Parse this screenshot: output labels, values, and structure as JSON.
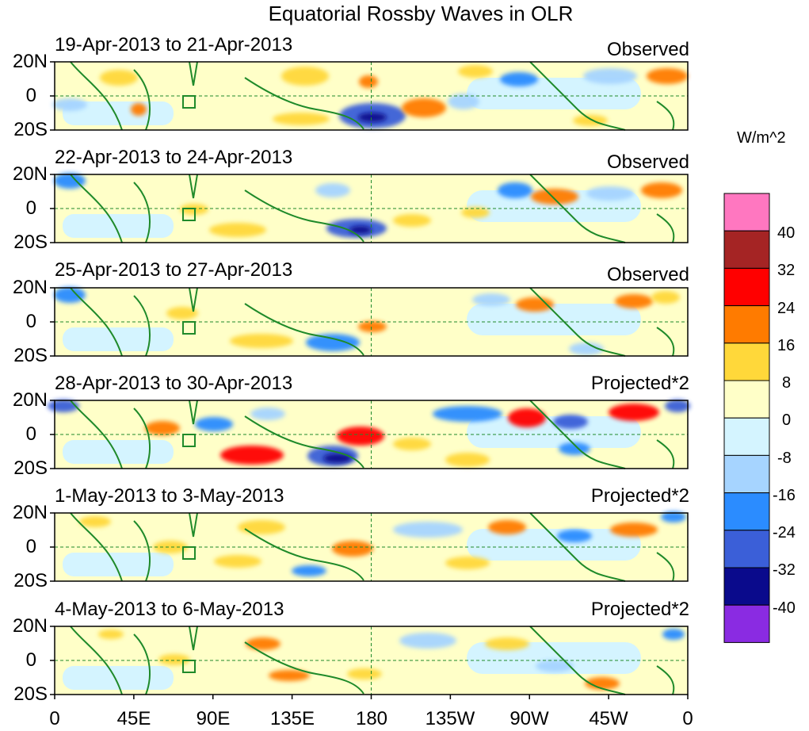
{
  "title": "Equatorial Rossby Waves in OLR",
  "panels": [
    {
      "label": "19-Apr-2013 to 21-Apr-2013",
      "status": "Observed"
    },
    {
      "label": "22-Apr-2013 to 24-Apr-2013",
      "status": "Observed"
    },
    {
      "label": "25-Apr-2013 to 27-Apr-2013",
      "status": "Observed"
    },
    {
      "label": "28-Apr-2013 to 30-Apr-2013",
      "status": "Projected*2"
    },
    {
      "label": "1-May-2013 to 3-May-2013",
      "status": "Projected*2"
    },
    {
      "label": "4-May-2013 to 6-May-2013",
      "status": "Projected*2"
    }
  ],
  "lat_ticks": [
    "20N",
    "0",
    "20S"
  ],
  "lon_ticks": [
    "0",
    "45E",
    "90E",
    "135E",
    "180",
    "135W",
    "90W",
    "45W",
    "0"
  ],
  "colorbar": {
    "unit": "W/m^2",
    "ticks": [
      "40",
      "32",
      "24",
      "16",
      "8",
      "0",
      "-8",
      "-16",
      "-24",
      "-32",
      "-40"
    ],
    "colors": [
      "#ff77c0",
      "#a52424",
      "#ff0000",
      "#ff7b00",
      "#ffd83a",
      "#ffffc8",
      "#d4f4ff",
      "#a6d4ff",
      "#2b8cff",
      "#3b5fd8",
      "#0a0a8c",
      "#8a2be2"
    ]
  },
  "anomalies": [
    [
      [
        88,
        132,
        22,
        8,
        "#a6d4ff"
      ],
      [
        150,
        98,
        24,
        10,
        "#ffd83a"
      ],
      [
        175,
        138,
        10,
        8,
        "#ff7b00"
      ],
      [
        385,
        96,
        30,
        12,
        "#ffd83a"
      ],
      [
        465,
        103,
        12,
        8,
        "#ff7b00"
      ],
      [
        470,
        146,
        42,
        16,
        "#3b5fd8"
      ],
      [
        470,
        148,
        18,
        6,
        "#0a0a8c"
      ],
      [
        535,
        136,
        28,
        12,
        "#ff7b00"
      ],
      [
        600,
        90,
        22,
        8,
        "#ffd83a"
      ],
      [
        655,
        100,
        24,
        9,
        "#2b8cff"
      ],
      [
        585,
        128,
        20,
        10,
        "#a6d4ff"
      ],
      [
        770,
        96,
        34,
        10,
        "#a6d4ff"
      ],
      [
        842,
        96,
        26,
        10,
        "#ff7b00"
      ],
      [
        745,
        152,
        22,
        7,
        "#ffd83a"
      ],
      [
        380,
        150,
        36,
        8,
        "#ffd83a"
      ]
    ],
    [
      [
        88,
        228,
        20,
        10,
        "#2b8cff"
      ],
      [
        245,
        264,
        18,
        7,
        "#ffd83a"
      ],
      [
        300,
        290,
        36,
        9,
        "#ffd83a"
      ],
      [
        420,
        240,
        22,
        9,
        "#a6d4ff"
      ],
      [
        450,
        288,
        38,
        12,
        "#3b5fd8"
      ],
      [
        455,
        290,
        14,
        5,
        "#0a0a8c"
      ],
      [
        520,
        278,
        24,
        8,
        "#ffd83a"
      ],
      [
        650,
        240,
        22,
        10,
        "#2b8cff"
      ],
      [
        700,
        248,
        30,
        10,
        "#ff7b00"
      ],
      [
        770,
        244,
        30,
        9,
        "#a6d4ff"
      ],
      [
        835,
        240,
        26,
        10,
        "#ff7b00"
      ],
      [
        600,
        268,
        18,
        7,
        "#ffd83a"
      ]
    ],
    [
      [
        88,
        372,
        20,
        10,
        "#2b8cff"
      ],
      [
        230,
        395,
        20,
        8,
        "#ffd83a"
      ],
      [
        330,
        430,
        40,
        9,
        "#ffd83a"
      ],
      [
        420,
        432,
        34,
        11,
        "#2b8cff"
      ],
      [
        470,
        412,
        18,
        7,
        "#ff7b00"
      ],
      [
        620,
        378,
        24,
        8,
        "#a6d4ff"
      ],
      [
        675,
        384,
        24,
        9,
        "#ff7b00"
      ],
      [
        800,
        380,
        24,
        9,
        "#ff7b00"
      ],
      [
        740,
        440,
        22,
        8,
        "#a6d4ff"
      ],
      [
        840,
        375,
        18,
        8,
        "#ffd83a"
      ]
    ],
    [
      [
        80,
        512,
        20,
        8,
        "#3b5fd8"
      ],
      [
        205,
        540,
        22,
        9,
        "#ff7b00"
      ],
      [
        270,
        535,
        24,
        9,
        "#2b8cff"
      ],
      [
        318,
        574,
        40,
        12,
        "#ff0000"
      ],
      [
        338,
        522,
        22,
        8,
        "#a6d4ff"
      ],
      [
        420,
        575,
        32,
        13,
        "#3b5fd8"
      ],
      [
        426,
        578,
        18,
        6,
        "#0a0a8c"
      ],
      [
        455,
        550,
        30,
        12,
        "#ff0000"
      ],
      [
        590,
        522,
        44,
        10,
        "#2b8cff"
      ],
      [
        665,
        527,
        24,
        12,
        "#ff0000"
      ],
      [
        720,
        532,
        22,
        9,
        "#3b5fd8"
      ],
      [
        800,
        520,
        32,
        11,
        "#ff0000"
      ],
      [
        855,
        512,
        16,
        8,
        "#3b5fd8"
      ],
      [
        725,
        566,
        20,
        8,
        "#2b8cff"
      ],
      [
        520,
        560,
        24,
        8,
        "#ffd83a"
      ],
      [
        590,
        580,
        28,
        9,
        "#ffd83a"
      ]
    ],
    [
      [
        120,
        658,
        20,
        7,
        "#ffd83a"
      ],
      [
        215,
        690,
        22,
        8,
        "#ffd83a"
      ],
      [
        300,
        708,
        30,
        8,
        "#ffd83a"
      ],
      [
        330,
        665,
        30,
        9,
        "#ffd83a"
      ],
      [
        445,
        692,
        26,
        10,
        "#ff7b00"
      ],
      [
        390,
        720,
        22,
        7,
        "#2b8cff"
      ],
      [
        540,
        668,
        44,
        10,
        "#a6d4ff"
      ],
      [
        640,
        665,
        24,
        9,
        "#ff7b00"
      ],
      [
        725,
        676,
        22,
        8,
        "#2b8cff"
      ],
      [
        800,
        668,
        30,
        9,
        "#ff7b00"
      ],
      [
        850,
        652,
        16,
        7,
        "#2b8cff"
      ],
      [
        590,
        710,
        28,
        8,
        "#ffd83a"
      ]
    ],
    [
      [
        140,
        800,
        16,
        6,
        "#ffd83a"
      ],
      [
        220,
        832,
        20,
        7,
        "#ffd83a"
      ],
      [
        332,
        812,
        22,
        8,
        "#ff7b00"
      ],
      [
        365,
        852,
        26,
        7,
        "#ff7b00"
      ],
      [
        540,
        808,
        36,
        10,
        "#a6d4ff"
      ],
      [
        640,
        812,
        28,
        8,
        "#ffd83a"
      ],
      [
        760,
        862,
        22,
        8,
        "#ff7b00"
      ],
      [
        850,
        800,
        14,
        7,
        "#2b8cff"
      ],
      [
        460,
        850,
        22,
        7,
        "#ffd83a"
      ],
      [
        700,
        840,
        24,
        8,
        "#a6d4ff"
      ]
    ]
  ]
}
